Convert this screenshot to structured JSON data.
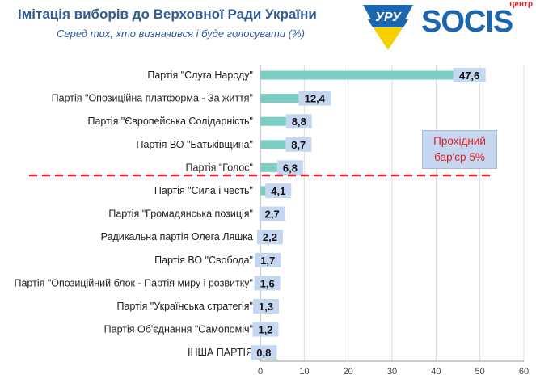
{
  "title": "Імітація виборів до Верховної Ради України",
  "subtitle": "Серед тих, хто визначився і буде голосувати (%)",
  "logos": {
    "uru": "УРУ",
    "socis": "SOCIS",
    "socis_prefix": "центр"
  },
  "threshold": {
    "label_line1": "Прохідний",
    "label_line2": "бар'єр 5%",
    "value": 5
  },
  "colors": {
    "bar": "#7ecdc3",
    "label_bg": "#c5d7f0",
    "threshold_line": "#e31e24",
    "title": "#2f5d97"
  },
  "chart_data": {
    "type": "bar",
    "orientation": "horizontal",
    "title": "Імітація виборів до Верховної Ради України",
    "subtitle": "Серед тих, хто визначився і буде голосувати (%)",
    "categories": [
      "Партія \"Слуга Народу\"",
      "Партія \"Опозиційна платформа - За життя\"",
      "Партія \"Європейська Солідарність\"",
      "Партія ВО \"Батьківщина\"",
      "Партія \"Голос\"",
      "Партія \"Сила і честь\"",
      "Партія \"Громадянська позиція\"",
      "Радикальна партія Олега Ляшка",
      "Партія ВО \"Свобода\"",
      "Партія \"Опозиційний блок - Партія миру і розвитку\"",
      "Партія \"Українська стратегія\"",
      "Партія Об'єднання \"Самопоміч\"",
      "ІНША ПАРТІЯ"
    ],
    "values": [
      47.6,
      12.4,
      8.8,
      8.7,
      6.8,
      4.1,
      2.7,
      2.2,
      1.7,
      1.6,
      1.3,
      1.2,
      0.8
    ],
    "value_labels": [
      "47,6",
      "12,4",
      "8,8",
      "8,7",
      "6,8",
      "4,1",
      "2,7",
      "2,2",
      "1,7",
      "1,6",
      "1,3",
      "1,2",
      "0,8"
    ],
    "xlim": [
      0,
      60
    ],
    "xticks": [
      0,
      10,
      20,
      30,
      40,
      50,
      60
    ],
    "grid": true,
    "xlabel": "",
    "ylabel": ""
  }
}
